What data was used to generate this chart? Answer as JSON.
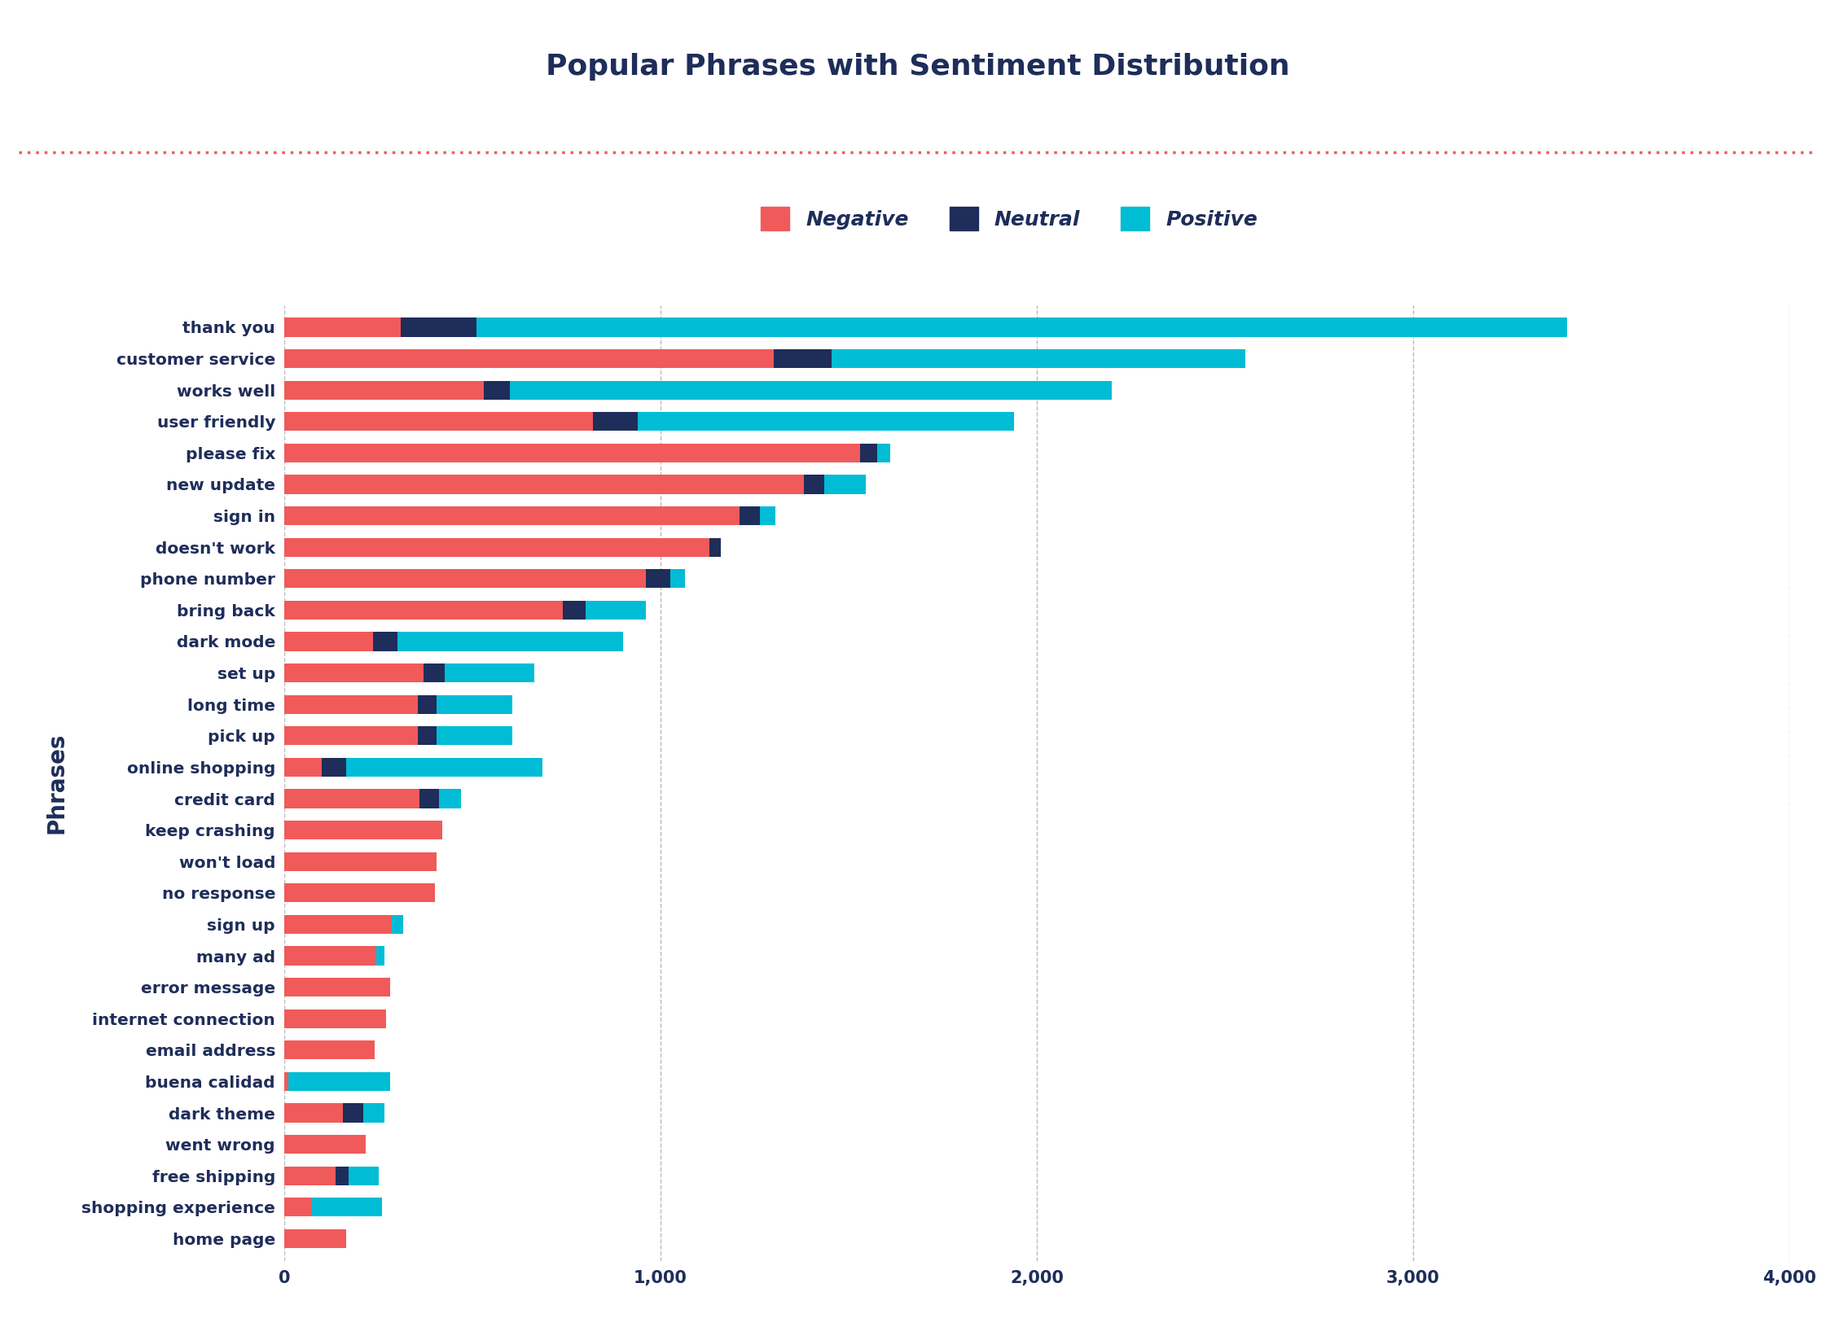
{
  "title": "Popular Phrases with Sentiment Distribution",
  "ylabel": "Phrases",
  "colors": {
    "negative": "#f05a5a",
    "neutral": "#1e2d5a",
    "positive": "#00bcd4",
    "title": "#1e2d5a",
    "dotted_line": "#f05a5a",
    "background": "#ffffff",
    "grid": "#aaaaaa"
  },
  "phrases": [
    "thank you",
    "customer service",
    "works well",
    "user friendly",
    "please fix",
    "new update",
    "sign in",
    "doesn't work",
    "phone number",
    "bring back",
    "dark mode",
    "set up",
    "long time",
    "pick up",
    "online shopping",
    "credit card",
    "keep crashing",
    "won't load",
    "no response",
    "sign up",
    "many ad",
    "error message",
    "internet connection",
    "email address",
    "buena calidad",
    "dark theme",
    "went wrong",
    "free shipping",
    "shopping experience",
    "home page"
  ],
  "negative": [
    310,
    1300,
    530,
    820,
    1530,
    1380,
    1210,
    1130,
    960,
    740,
    235,
    370,
    355,
    355,
    100,
    360,
    420,
    405,
    400,
    285,
    245,
    280,
    270,
    240,
    10,
    155,
    215,
    135,
    70,
    165
  ],
  "neutral": [
    200,
    155,
    70,
    120,
    45,
    55,
    55,
    30,
    65,
    60,
    65,
    55,
    50,
    50,
    65,
    50,
    0,
    0,
    0,
    0,
    0,
    0,
    0,
    0,
    0,
    55,
    0,
    35,
    0,
    0
  ],
  "positive": [
    2900,
    1100,
    1600,
    1000,
    35,
    110,
    40,
    0,
    40,
    160,
    600,
    240,
    200,
    200,
    520,
    60,
    0,
    0,
    0,
    30,
    20,
    0,
    0,
    0,
    270,
    55,
    0,
    80,
    190,
    0
  ]
}
